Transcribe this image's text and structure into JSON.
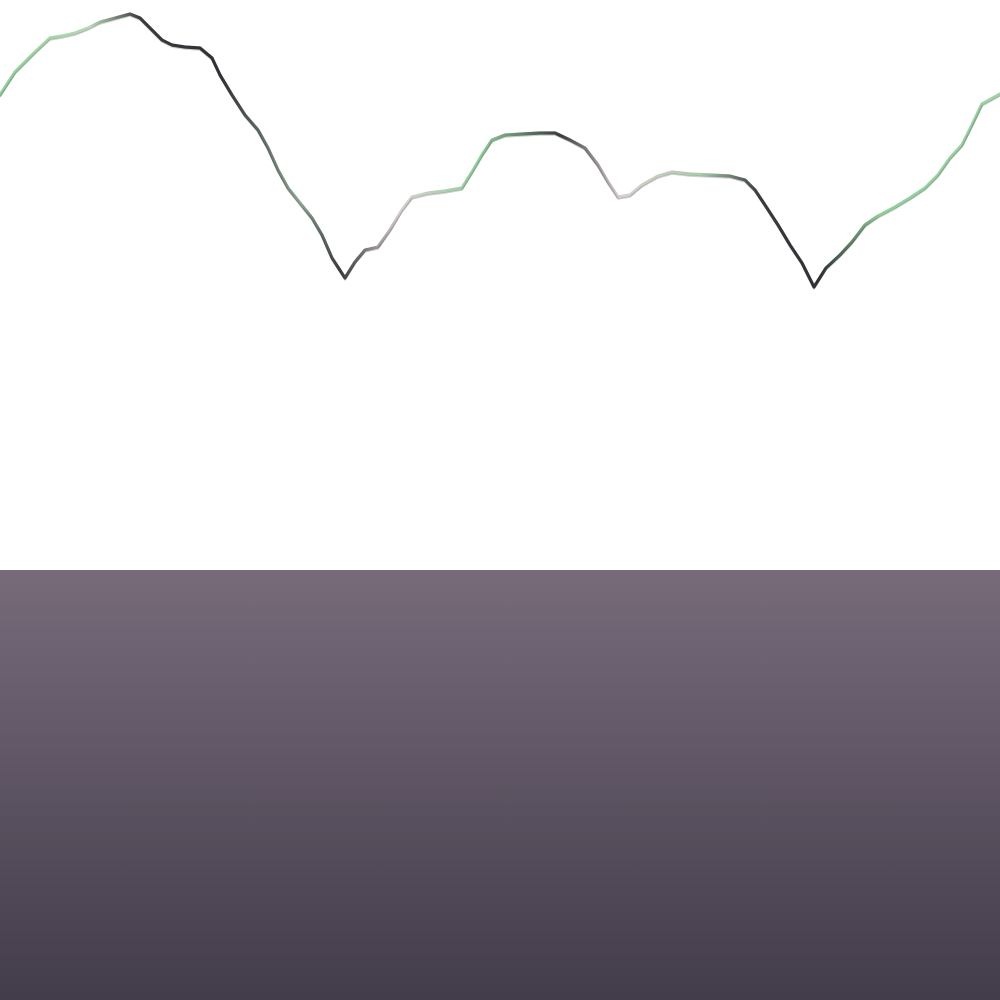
{
  "scene": {
    "colors": {
      "sky": "#ffffff",
      "ridge_dark": "#3a3a3f",
      "ridge_green": "#8fcf9a",
      "ridge_pale": "#d9cfcf",
      "ground_top": "#776b7a",
      "ground_bottom": "#433c4a"
    }
  }
}
